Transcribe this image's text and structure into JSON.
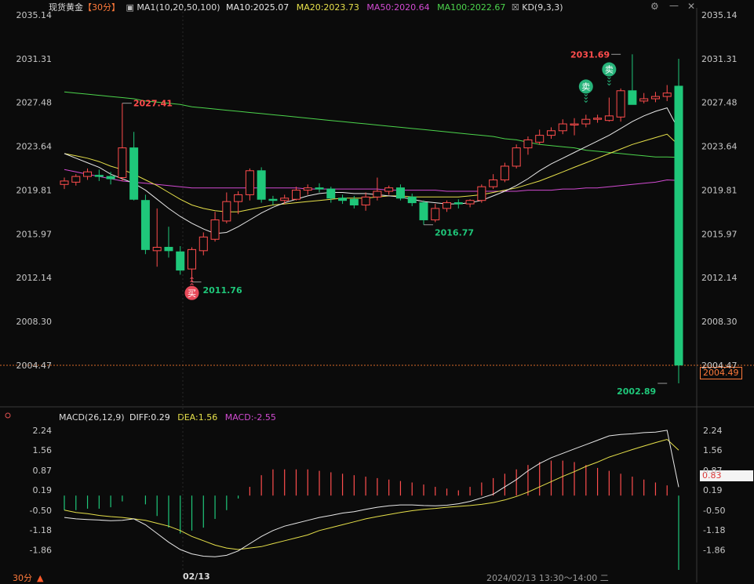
{
  "header": {
    "instrument": "现货黄金",
    "period": "【30分】",
    "ma_toggle": "▣",
    "ma_label": "MA1(10,20,50,100)",
    "ma10": "MA10:2025.07",
    "ma20": "MA20:2023.73",
    "ma50": "MA50:2020.64",
    "ma100": "MA100:2022.67",
    "kd_toggle": "☒",
    "kd_label": "KD(9,3,3)"
  },
  "macd_header": {
    "label": "MACD(26,12,9)",
    "diff": "DIFF:0.29",
    "dea": "DEA:1.56",
    "macd": "MACD:-2.55"
  },
  "toolbar": {
    "settings": "⚙",
    "minimize": "—",
    "close": "✕"
  },
  "footer": {
    "period": "30分",
    "up_arrow": "▲",
    "date": "02/13",
    "time": "2024/02/13 13:30～14:00 二"
  },
  "last_price_tag": "2004.49",
  "macd_value_tag": "0.83",
  "colors": {
    "up": "#ff4d4d",
    "down": "#1fc77a",
    "ma10": "#e8e8e8",
    "ma20": "#e6e04a",
    "ma50": "#d24bd2",
    "ma100": "#4cd44c",
    "dea": "#e6e04a"
  },
  "chart_data": {
    "type": "candlestick",
    "price_axis": {
      "ticks": [
        2035.14,
        2031.31,
        2027.48,
        2023.64,
        2019.81,
        2015.97,
        2012.14,
        2008.3,
        2004.47
      ],
      "ylim": [
        2004.47,
        2035.14
      ]
    },
    "annotations": [
      {
        "text": "2027.41",
        "kind": "high",
        "bar": 5,
        "value": 2027.41
      },
      {
        "text": "2011.76",
        "kind": "low",
        "bar": 11,
        "value": 2011.76
      },
      {
        "text": "2016.77",
        "kind": "low",
        "bar": 31,
        "value": 2016.77
      },
      {
        "text": "2031.69",
        "kind": "high",
        "bar": 48,
        "value": 2031.69
      },
      {
        "text": "2002.89",
        "kind": "low",
        "bar": 52,
        "value": 2002.89
      }
    ],
    "signals": [
      {
        "text": "买",
        "kind": "buy",
        "bar": 11
      },
      {
        "text": "卖",
        "kind": "sell",
        "bar": 45
      },
      {
        "text": "卖",
        "kind": "sell",
        "bar": 47
      }
    ],
    "candles": [
      {
        "o": 2020.3,
        "h": 2020.9,
        "l": 2019.9,
        "c": 2020.6
      },
      {
        "o": 2020.5,
        "h": 2021.2,
        "l": 2020.2,
        "c": 2021.0
      },
      {
        "o": 2021.0,
        "h": 2021.7,
        "l": 2020.7,
        "c": 2021.4
      },
      {
        "o": 2021.1,
        "h": 2021.6,
        "l": 2020.6,
        "c": 2021.0
      },
      {
        "o": 2021.0,
        "h": 2021.4,
        "l": 2020.3,
        "c": 2020.8
      },
      {
        "o": 2020.9,
        "h": 2027.41,
        "l": 2020.6,
        "c": 2023.5
      },
      {
        "o": 2023.5,
        "h": 2024.9,
        "l": 2018.9,
        "c": 2019.0
      },
      {
        "o": 2018.9,
        "h": 2019.4,
        "l": 2014.2,
        "c": 2014.6
      },
      {
        "o": 2014.5,
        "h": 2018.2,
        "l": 2013.1,
        "c": 2014.8
      },
      {
        "o": 2014.8,
        "h": 2016.6,
        "l": 2013.9,
        "c": 2014.5
      },
      {
        "o": 2014.4,
        "h": 2014.9,
        "l": 2012.4,
        "c": 2012.8
      },
      {
        "o": 2012.9,
        "h": 2014.8,
        "l": 2011.76,
        "c": 2014.6
      },
      {
        "o": 2014.5,
        "h": 2016.1,
        "l": 2014.1,
        "c": 2015.7
      },
      {
        "o": 2015.5,
        "h": 2017.9,
        "l": 2015.3,
        "c": 2017.2
      },
      {
        "o": 2017.1,
        "h": 2019.6,
        "l": 2016.9,
        "c": 2018.8
      },
      {
        "o": 2018.8,
        "h": 2019.7,
        "l": 2017.7,
        "c": 2019.4
      },
      {
        "o": 2019.4,
        "h": 2021.7,
        "l": 2018.9,
        "c": 2021.5
      },
      {
        "o": 2021.5,
        "h": 2021.8,
        "l": 2018.7,
        "c": 2019.0
      },
      {
        "o": 2019.0,
        "h": 2019.3,
        "l": 2018.5,
        "c": 2018.9
      },
      {
        "o": 2018.9,
        "h": 2019.4,
        "l": 2018.6,
        "c": 2019.1
      },
      {
        "o": 2019.0,
        "h": 2020.1,
        "l": 2018.9,
        "c": 2019.8
      },
      {
        "o": 2019.8,
        "h": 2020.3,
        "l": 2019.4,
        "c": 2020.0
      },
      {
        "o": 2020.0,
        "h": 2020.4,
        "l": 2019.6,
        "c": 2019.9
      },
      {
        "o": 2019.9,
        "h": 2020.1,
        "l": 2018.7,
        "c": 2019.1
      },
      {
        "o": 2019.1,
        "h": 2019.4,
        "l": 2018.6,
        "c": 2018.9
      },
      {
        "o": 2019.0,
        "h": 2019.3,
        "l": 2018.2,
        "c": 2018.5
      },
      {
        "o": 2018.5,
        "h": 2019.6,
        "l": 2018.0,
        "c": 2019.2
      },
      {
        "o": 2019.2,
        "h": 2020.9,
        "l": 2018.9,
        "c": 2019.7
      },
      {
        "o": 2019.7,
        "h": 2020.2,
        "l": 2019.4,
        "c": 2020.0
      },
      {
        "o": 2020.0,
        "h": 2020.3,
        "l": 2018.9,
        "c": 2019.1
      },
      {
        "o": 2019.2,
        "h": 2019.5,
        "l": 2018.4,
        "c": 2018.7
      },
      {
        "o": 2018.7,
        "h": 2018.9,
        "l": 2016.77,
        "c": 2017.2
      },
      {
        "o": 2017.2,
        "h": 2018.6,
        "l": 2017.0,
        "c": 2018.2
      },
      {
        "o": 2018.2,
        "h": 2018.9,
        "l": 2017.9,
        "c": 2018.7
      },
      {
        "o": 2018.7,
        "h": 2019.0,
        "l": 2018.2,
        "c": 2018.6
      },
      {
        "o": 2018.6,
        "h": 2019.0,
        "l": 2018.3,
        "c": 2018.9
      },
      {
        "o": 2018.9,
        "h": 2020.3,
        "l": 2018.7,
        "c": 2020.1
      },
      {
        "o": 2020.1,
        "h": 2021.2,
        "l": 2019.9,
        "c": 2020.7
      },
      {
        "o": 2020.7,
        "h": 2022.2,
        "l": 2020.5,
        "c": 2021.9
      },
      {
        "o": 2021.9,
        "h": 2023.8,
        "l": 2021.7,
        "c": 2023.5
      },
      {
        "o": 2023.5,
        "h": 2024.5,
        "l": 2022.9,
        "c": 2024.2
      },
      {
        "o": 2024.0,
        "h": 2025.1,
        "l": 2023.8,
        "c": 2024.6
      },
      {
        "o": 2024.6,
        "h": 2025.3,
        "l": 2024.3,
        "c": 2025.0
      },
      {
        "o": 2025.0,
        "h": 2026.0,
        "l": 2024.7,
        "c": 2025.6
      },
      {
        "o": 2025.5,
        "h": 2026.1,
        "l": 2024.6,
        "c": 2025.6
      },
      {
        "o": 2025.6,
        "h": 2026.4,
        "l": 2025.3,
        "c": 2026.0
      },
      {
        "o": 2026.0,
        "h": 2026.4,
        "l": 2025.7,
        "c": 2026.1
      },
      {
        "o": 2025.9,
        "h": 2027.9,
        "l": 2025.8,
        "c": 2026.3
      },
      {
        "o": 2026.2,
        "h": 2028.7,
        "l": 2025.8,
        "c": 2028.5
      },
      {
        "o": 2028.5,
        "h": 2031.69,
        "l": 2027.3,
        "c": 2027.3
      },
      {
        "o": 2027.6,
        "h": 2028.3,
        "l": 2027.4,
        "c": 2027.8
      },
      {
        "o": 2027.8,
        "h": 2028.4,
        "l": 2027.5,
        "c": 2028.0
      },
      {
        "o": 2028.0,
        "h": 2029.0,
        "l": 2027.6,
        "c": 2028.3
      },
      {
        "o": 2028.9,
        "h": 2031.3,
        "l": 2002.89,
        "c": 2004.49
      }
    ],
    "ma10": [
      2023.0,
      2022.6,
      2022.2,
      2021.8,
      2021.2,
      2020.8,
      2020.4,
      2019.8,
      2019.0,
      2018.2,
      2017.5,
      2016.9,
      2016.4,
      2016.0,
      2016.1,
      2016.6,
      2017.2,
      2017.8,
      2018.3,
      2018.7,
      2019.0,
      2019.3,
      2019.5,
      2019.6,
      2019.6,
      2019.5,
      2019.5,
      2019.4,
      2019.3,
      2019.2,
      2019.0,
      2018.8,
      2018.7,
      2018.6,
      2018.6,
      2018.7,
      2018.9,
      2019.3,
      2019.7,
      2020.2,
      2020.8,
      2021.5,
      2022.1,
      2022.6,
      2023.1,
      2023.6,
      2024.1,
      2024.6,
      2025.2,
      2025.8,
      2026.3,
      2026.7,
      2027.0,
      2025.07
    ],
    "ma20": [
      2023.0,
      2022.8,
      2022.6,
      2022.3,
      2021.9,
      2021.6,
      2021.2,
      2020.7,
      2020.2,
      2019.6,
      2019.0,
      2018.5,
      2018.2,
      2018.0,
      2017.9,
      2017.9,
      2018.1,
      2018.3,
      2018.5,
      2018.6,
      2018.7,
      2018.8,
      2018.9,
      2019.0,
      2019.1,
      2019.1,
      2019.1,
      2019.2,
      2019.3,
      2019.3,
      2019.2,
      2019.2,
      2019.2,
      2019.2,
      2019.2,
      2019.3,
      2019.4,
      2019.6,
      2019.8,
      2020.0,
      2020.3,
      2020.6,
      2021.0,
      2021.4,
      2021.8,
      2022.2,
      2022.6,
      2023.0,
      2023.4,
      2023.8,
      2024.1,
      2024.4,
      2024.7,
      2023.73
    ],
    "ma50": [
      2021.6,
      2021.4,
      2021.2,
      2021.0,
      2020.8,
      2020.6,
      2020.5,
      2020.4,
      2020.3,
      2020.2,
      2020.1,
      2020.0,
      2020.0,
      2020.0,
      2020.0,
      2020.0,
      2020.0,
      2020.0,
      2020.0,
      2020.0,
      2020.0,
      2019.9,
      2019.9,
      2019.9,
      2019.9,
      2019.9,
      2019.9,
      2019.9,
      2019.8,
      2019.8,
      2019.8,
      2019.8,
      2019.8,
      2019.7,
      2019.7,
      2019.7,
      2019.7,
      2019.7,
      2019.7,
      2019.7,
      2019.8,
      2019.8,
      2019.8,
      2019.9,
      2019.9,
      2020.0,
      2020.0,
      2020.1,
      2020.2,
      2020.3,
      2020.4,
      2020.5,
      2020.7,
      2020.64
    ],
    "ma100": [
      2028.4,
      2028.3,
      2028.2,
      2028.1,
      2028.0,
      2027.9,
      2027.8,
      2027.6,
      2027.5,
      2027.4,
      2027.3,
      2027.1,
      2027.0,
      2026.9,
      2026.8,
      2026.7,
      2026.6,
      2026.5,
      2026.4,
      2026.3,
      2026.2,
      2026.1,
      2026.0,
      2025.9,
      2025.8,
      2025.7,
      2025.6,
      2025.5,
      2025.4,
      2025.3,
      2025.2,
      2025.1,
      2025.0,
      2024.9,
      2024.8,
      2024.7,
      2024.6,
      2024.5,
      2024.3,
      2024.2,
      2024.0,
      2023.8,
      2023.7,
      2023.6,
      2023.5,
      2023.3,
      2023.2,
      2023.1,
      2023.0,
      2022.9,
      2022.8,
      2022.7,
      2022.7,
      2022.67
    ],
    "macd_axis": {
      "ticks": [
        2.24,
        1.56,
        0.87,
        0.19,
        -0.5,
        -1.18,
        -1.86
      ],
      "ylim": [
        -2.55,
        2.4
      ]
    },
    "diff": [
      -0.75,
      -0.8,
      -0.82,
      -0.84,
      -0.86,
      -0.85,
      -0.8,
      -1.0,
      -1.3,
      -1.6,
      -1.85,
      -2.0,
      -2.08,
      -2.1,
      -2.05,
      -1.9,
      -1.65,
      -1.4,
      -1.2,
      -1.05,
      -0.95,
      -0.85,
      -0.75,
      -0.68,
      -0.6,
      -0.55,
      -0.47,
      -0.4,
      -0.35,
      -0.32,
      -0.32,
      -0.34,
      -0.35,
      -0.33,
      -0.28,
      -0.2,
      -0.08,
      0.05,
      0.3,
      0.55,
      0.85,
      1.1,
      1.3,
      1.45,
      1.6,
      1.75,
      1.9,
      2.05,
      2.1,
      2.12,
      2.16,
      2.18,
      2.24,
      0.29
    ],
    "dea": [
      -0.5,
      -0.58,
      -0.62,
      -0.68,
      -0.72,
      -0.75,
      -0.8,
      -0.85,
      -0.95,
      -1.05,
      -1.2,
      -1.4,
      -1.55,
      -1.7,
      -1.8,
      -1.85,
      -1.8,
      -1.75,
      -1.65,
      -1.55,
      -1.45,
      -1.35,
      -1.2,
      -1.1,
      -1.0,
      -0.9,
      -0.8,
      -0.72,
      -0.65,
      -0.58,
      -0.52,
      -0.47,
      -0.44,
      -0.4,
      -0.37,
      -0.34,
      -0.3,
      -0.24,
      -0.15,
      -0.03,
      0.12,
      0.3,
      0.48,
      0.66,
      0.82,
      1.0,
      1.15,
      1.32,
      1.45,
      1.58,
      1.7,
      1.82,
      1.93,
      1.56
    ],
    "macd": [
      -0.5,
      -0.5,
      -0.45,
      -0.45,
      -0.4,
      -0.2,
      0,
      -0.3,
      -0.7,
      -1.1,
      -1.3,
      -1.2,
      -1.1,
      -0.8,
      -0.5,
      -0.1,
      0.3,
      0.7,
      0.9,
      0.9,
      0.9,
      0.9,
      0.85,
      0.8,
      0.75,
      0.7,
      0.65,
      0.6,
      0.55,
      0.5,
      0.45,
      0.38,
      0.3,
      0.24,
      0.18,
      0.3,
      0.45,
      0.6,
      0.75,
      0.9,
      1.05,
      1.15,
      1.2,
      1.2,
      1.15,
      1.05,
      0.95,
      0.85,
      0.75,
      0.65,
      0.55,
      0.45,
      0.35,
      -2.55
    ]
  }
}
